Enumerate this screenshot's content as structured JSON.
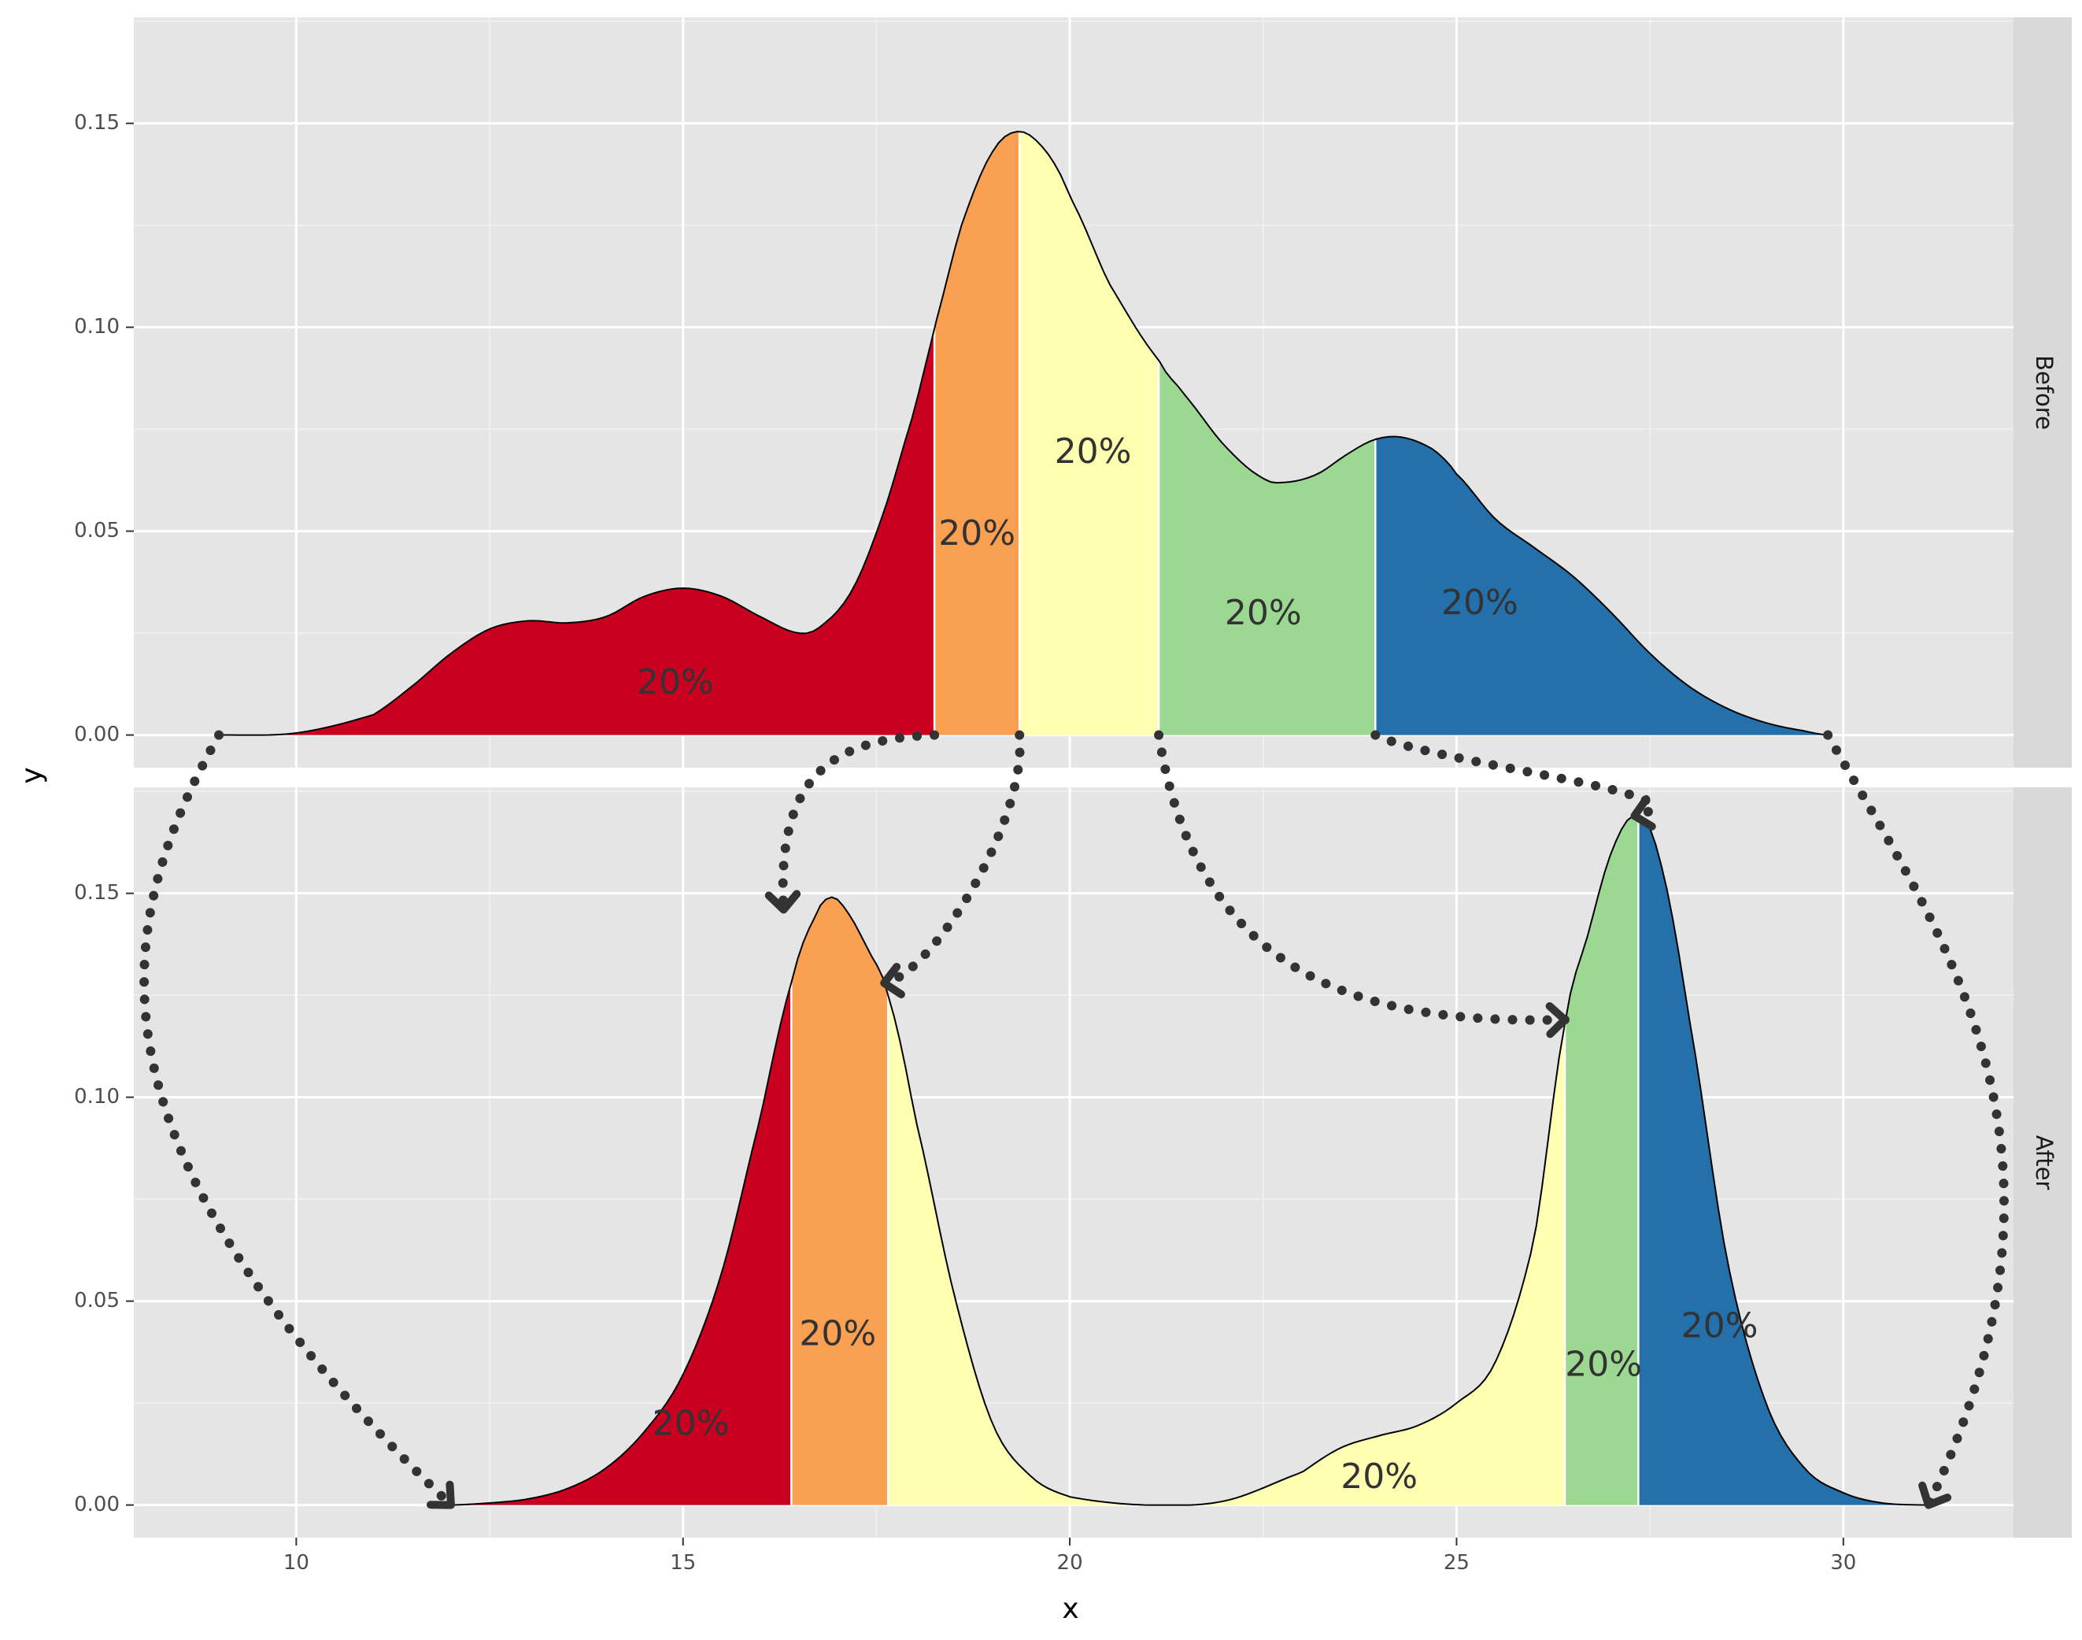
{
  "chart_data": {
    "type": "area",
    "xlabel": "x",
    "ylabel": "y",
    "xlim": [
      7.9,
      32.2
    ],
    "ylim": [
      -0.008,
      0.176
    ],
    "x_ticks": [
      10,
      15,
      20,
      25,
      30
    ],
    "y_ticks": [
      0.0,
      0.05,
      0.1,
      0.15
    ],
    "x_tick_labels": [
      "10",
      "15",
      "20",
      "25",
      "30"
    ],
    "y_tick_labels": [
      "0.00",
      "0.05",
      "0.10",
      "0.15"
    ],
    "grid": true,
    "segment_colors": [
      "#ca0020",
      "#f9a052",
      "#ffffb2",
      "#9dd893",
      "#2470ab"
    ],
    "panels": [
      {
        "facet": "Before",
        "density_points": [
          [
            9.0,
            0.0
          ],
          [
            10.0,
            0.0005
          ],
          [
            11.0,
            0.005
          ],
          [
            11.5,
            0.012
          ],
          [
            12.0,
            0.02
          ],
          [
            12.5,
            0.026
          ],
          [
            13.0,
            0.028
          ],
          [
            13.5,
            0.0275
          ],
          [
            14.0,
            0.029
          ],
          [
            14.5,
            0.034
          ],
          [
            15.0,
            0.036
          ],
          [
            15.5,
            0.034
          ],
          [
            16.0,
            0.029
          ],
          [
            16.5,
            0.025
          ],
          [
            16.8,
            0.027
          ],
          [
            17.2,
            0.036
          ],
          [
            17.6,
            0.055
          ],
          [
            18.0,
            0.08
          ],
          [
            18.25,
            0.1
          ],
          [
            18.6,
            0.125
          ],
          [
            19.0,
            0.143
          ],
          [
            19.35,
            0.148
          ],
          [
            19.7,
            0.143
          ],
          [
            20.0,
            0.132
          ],
          [
            20.5,
            0.111
          ],
          [
            21.15,
            0.092
          ],
          [
            21.5,
            0.083
          ],
          [
            22.0,
            0.071
          ],
          [
            22.5,
            0.063
          ],
          [
            22.8,
            0.062
          ],
          [
            23.2,
            0.064
          ],
          [
            23.6,
            0.069
          ],
          [
            23.95,
            0.0725
          ],
          [
            24.3,
            0.073
          ],
          [
            24.7,
            0.07
          ],
          [
            25.0,
            0.064
          ],
          [
            25.5,
            0.053
          ],
          [
            26.0,
            0.046
          ],
          [
            26.5,
            0.039
          ],
          [
            27.0,
            0.03
          ],
          [
            27.5,
            0.02
          ],
          [
            28.0,
            0.012
          ],
          [
            28.5,
            0.0065
          ],
          [
            29.0,
            0.003
          ],
          [
            29.5,
            0.001
          ],
          [
            29.8,
            0.0
          ]
        ],
        "segments": [
          {
            "color": "#ca0020",
            "x_from": 9.0,
            "x_to": 18.25,
            "label": "20%",
            "label_x": 14.9,
            "label_y": 0.0125
          },
          {
            "color": "#f9a052",
            "x_from": 18.25,
            "x_to": 19.35,
            "label": "20%",
            "label_x": 18.8,
            "label_y": 0.049
          },
          {
            "color": "#ffffb2",
            "x_from": 19.35,
            "x_to": 21.15,
            "label": "20%",
            "label_x": 20.3,
            "label_y": 0.069
          },
          {
            "color": "#9dd893",
            "x_from": 21.15,
            "x_to": 23.95,
            "label": "20%",
            "label_x": 22.5,
            "label_y": 0.0295
          },
          {
            "color": "#2470ab",
            "x_from": 23.95,
            "x_to": 29.8,
            "label": "20%",
            "label_x": 25.3,
            "label_y": 0.032
          }
        ]
      },
      {
        "facet": "After",
        "density_points": [
          [
            12.0,
            0.0
          ],
          [
            12.5,
            0.0005
          ],
          [
            13.0,
            0.0015
          ],
          [
            13.5,
            0.004
          ],
          [
            14.0,
            0.009
          ],
          [
            14.5,
            0.018
          ],
          [
            15.0,
            0.032
          ],
          [
            15.5,
            0.057
          ],
          [
            16.0,
            0.095
          ],
          [
            16.4,
            0.128
          ],
          [
            16.7,
            0.144
          ],
          [
            16.9,
            0.149
          ],
          [
            17.1,
            0.146
          ],
          [
            17.4,
            0.136
          ],
          [
            17.65,
            0.125
          ],
          [
            18.0,
            0.095
          ],
          [
            18.5,
            0.052
          ],
          [
            19.0,
            0.02
          ],
          [
            19.5,
            0.007
          ],
          [
            20.0,
            0.002
          ],
          [
            21.0,
            0.0
          ],
          [
            22.0,
            0.001
          ],
          [
            23.0,
            0.008
          ],
          [
            23.5,
            0.014
          ],
          [
            24.0,
            0.017
          ],
          [
            24.5,
            0.0195
          ],
          [
            25.0,
            0.025
          ],
          [
            25.5,
            0.035
          ],
          [
            26.0,
            0.065
          ],
          [
            26.4,
            0.118
          ],
          [
            26.7,
            0.14
          ],
          [
            27.0,
            0.16
          ],
          [
            27.3,
            0.169
          ],
          [
            27.6,
            0.16
          ],
          [
            28.0,
            0.12
          ],
          [
            28.5,
            0.06
          ],
          [
            29.0,
            0.025
          ],
          [
            29.5,
            0.009
          ],
          [
            30.0,
            0.003
          ],
          [
            30.5,
            0.0005
          ],
          [
            31.1,
            0.0
          ]
        ],
        "segments": [
          {
            "color": "#ca0020",
            "x_from": 12.0,
            "x_to": 16.4,
            "label": "20%",
            "label_x": 15.1,
            "label_y": 0.0195
          },
          {
            "color": "#f9a052",
            "x_from": 16.4,
            "x_to": 17.65,
            "label": "20%",
            "label_x": 17.0,
            "label_y": 0.0415
          },
          {
            "color": "#ffffb2",
            "x_from": 17.65,
            "x_to": 26.4,
            "label": "20%",
            "label_x": 24.0,
            "label_y": 0.0065
          },
          {
            "color": "#9dd893",
            "x_from": 26.4,
            "x_to": 27.35,
            "label": "20%",
            "label_x": 26.9,
            "label_y": 0.034
          },
          {
            "color": "#2470ab",
            "x_from": 27.35,
            "x_to": 31.1,
            "label": "20%",
            "label_x": 28.4,
            "label_y": 0.0435
          }
        ]
      }
    ],
    "arrows": [
      {
        "from": {
          "facet": "Before",
          "x": 9.0,
          "y": 0.0
        },
        "to": {
          "facet": "After",
          "x": 12.0,
          "y": 0.0
        }
      },
      {
        "from": {
          "facet": "Before",
          "x": 18.25,
          "y": 0.0
        },
        "to": {
          "facet": "After",
          "x": 16.3,
          "y": 0.146
        }
      },
      {
        "from": {
          "facet": "Before",
          "x": 19.35,
          "y": 0.0
        },
        "to": {
          "facet": "After",
          "x": 17.6,
          "y": 0.128
        }
      },
      {
        "from": {
          "facet": "Before",
          "x": 21.15,
          "y": 0.0
        },
        "to": {
          "facet": "After",
          "x": 26.4,
          "y": 0.119
        }
      },
      {
        "from": {
          "facet": "Before",
          "x": 23.95,
          "y": 0.0
        },
        "to": {
          "facet": "After",
          "x": 27.3,
          "y": 0.169
        }
      },
      {
        "from": {
          "facet": "Before",
          "x": 29.8,
          "y": 0.0
        },
        "to": {
          "facet": "After",
          "x": 31.1,
          "y": 0.0
        }
      }
    ]
  }
}
